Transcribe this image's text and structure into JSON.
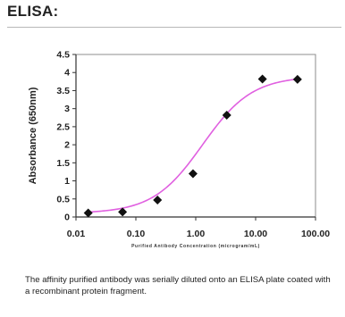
{
  "page": {
    "heading": "ELISA:",
    "caption": "The affinity purified antibody was serially diluted onto an ELISA plate coated with a recombinant protein fragment."
  },
  "chart_data": {
    "type": "scatter",
    "xscale": "log",
    "xlim": [
      0.01,
      100
    ],
    "ylim": [
      0,
      4.5
    ],
    "xticks": [
      0.01,
      0.1,
      1,
      10,
      100
    ],
    "xtick_labels": [
      "0.01",
      "0.10",
      "1.00",
      "10.00",
      "100.00"
    ],
    "yticks": [
      0,
      0.5,
      1,
      1.5,
      2,
      2.5,
      3,
      3.5,
      4,
      4.5
    ],
    "ytick_labels": [
      "0",
      "0.5",
      "1",
      "1.5",
      "2",
      "2.5",
      "3",
      "3.5",
      "4",
      "4.5"
    ],
    "xlabel": "Purified Antibody Concentration (microgram/mL)",
    "ylabel": "Absorbance (650nm)",
    "grid": false,
    "series": [
      {
        "x": [
          0.016,
          0.06,
          0.23,
          0.9,
          3.3,
          13,
          50
        ],
        "values": [
          0.11,
          0.14,
          0.47,
          1.2,
          2.82,
          3.82,
          3.81
        ]
      }
    ],
    "fit": {
      "type": "sigmoid",
      "bottom": 0.1,
      "top": 3.9,
      "ec50": 1.3,
      "hill": 1.05
    },
    "colors": {
      "marker": "#111111",
      "fit_line": "#e060e0",
      "axis": "#333333",
      "plot_border": "#8c8c8c"
    }
  }
}
